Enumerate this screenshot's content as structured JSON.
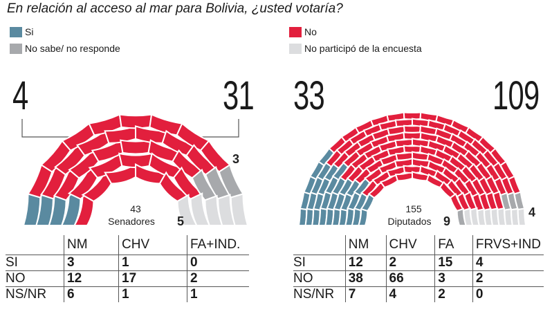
{
  "title": "En relación al acceso al mar para Bolivia, ¿usted votaría?",
  "legend": [
    {
      "label": "Si",
      "color": "#5a8aa0"
    },
    {
      "label": "No sabe/ no responde",
      "color": "#a7a9ac"
    },
    {
      "label": "No",
      "color": "#e21f3d"
    },
    {
      "label": "No participó de la encuesta",
      "color": "#dcdddf"
    }
  ],
  "chart_data": [
    {
      "type": "parliament",
      "total": 43,
      "center_label": [
        "43",
        "Senadores"
      ],
      "seats": {
        "si": 4,
        "no": 31,
        "ns_nr": 3,
        "no_participo": 5
      },
      "callouts": {
        "si": "4",
        "no": "31",
        "ns_nr": "3",
        "no_participo": "5"
      },
      "table": {
        "columns": [
          "NM",
          "CHV",
          "FA+IND."
        ],
        "rows": [
          {
            "label": "SI",
            "values": [
              "3",
              "1",
              "0"
            ]
          },
          {
            "label": "NO",
            "values": [
              "12",
              "17",
              "2"
            ]
          },
          {
            "label": "NS/NR",
            "values": [
              "6",
              "1",
              "1"
            ]
          }
        ]
      }
    },
    {
      "type": "parliament",
      "total": 155,
      "center_label": [
        "155",
        "Diputados"
      ],
      "seats": {
        "si": 33,
        "no": 109,
        "ns_nr": 4,
        "no_participo": 9
      },
      "callouts": {
        "si": "33",
        "no": "109",
        "ns_nr": "4",
        "no_participo": "9"
      },
      "table": {
        "columns": [
          "NM",
          "CHV",
          "FA",
          "FRVS+IND"
        ],
        "rows": [
          {
            "label": "SI",
            "values": [
              "12",
              "2",
              "15",
              "4"
            ]
          },
          {
            "label": "NO",
            "values": [
              "38",
              "66",
              "3",
              "2"
            ]
          },
          {
            "label": "NS/NR",
            "values": [
              "7",
              "4",
              "2",
              "0"
            ]
          }
        ]
      }
    }
  ]
}
